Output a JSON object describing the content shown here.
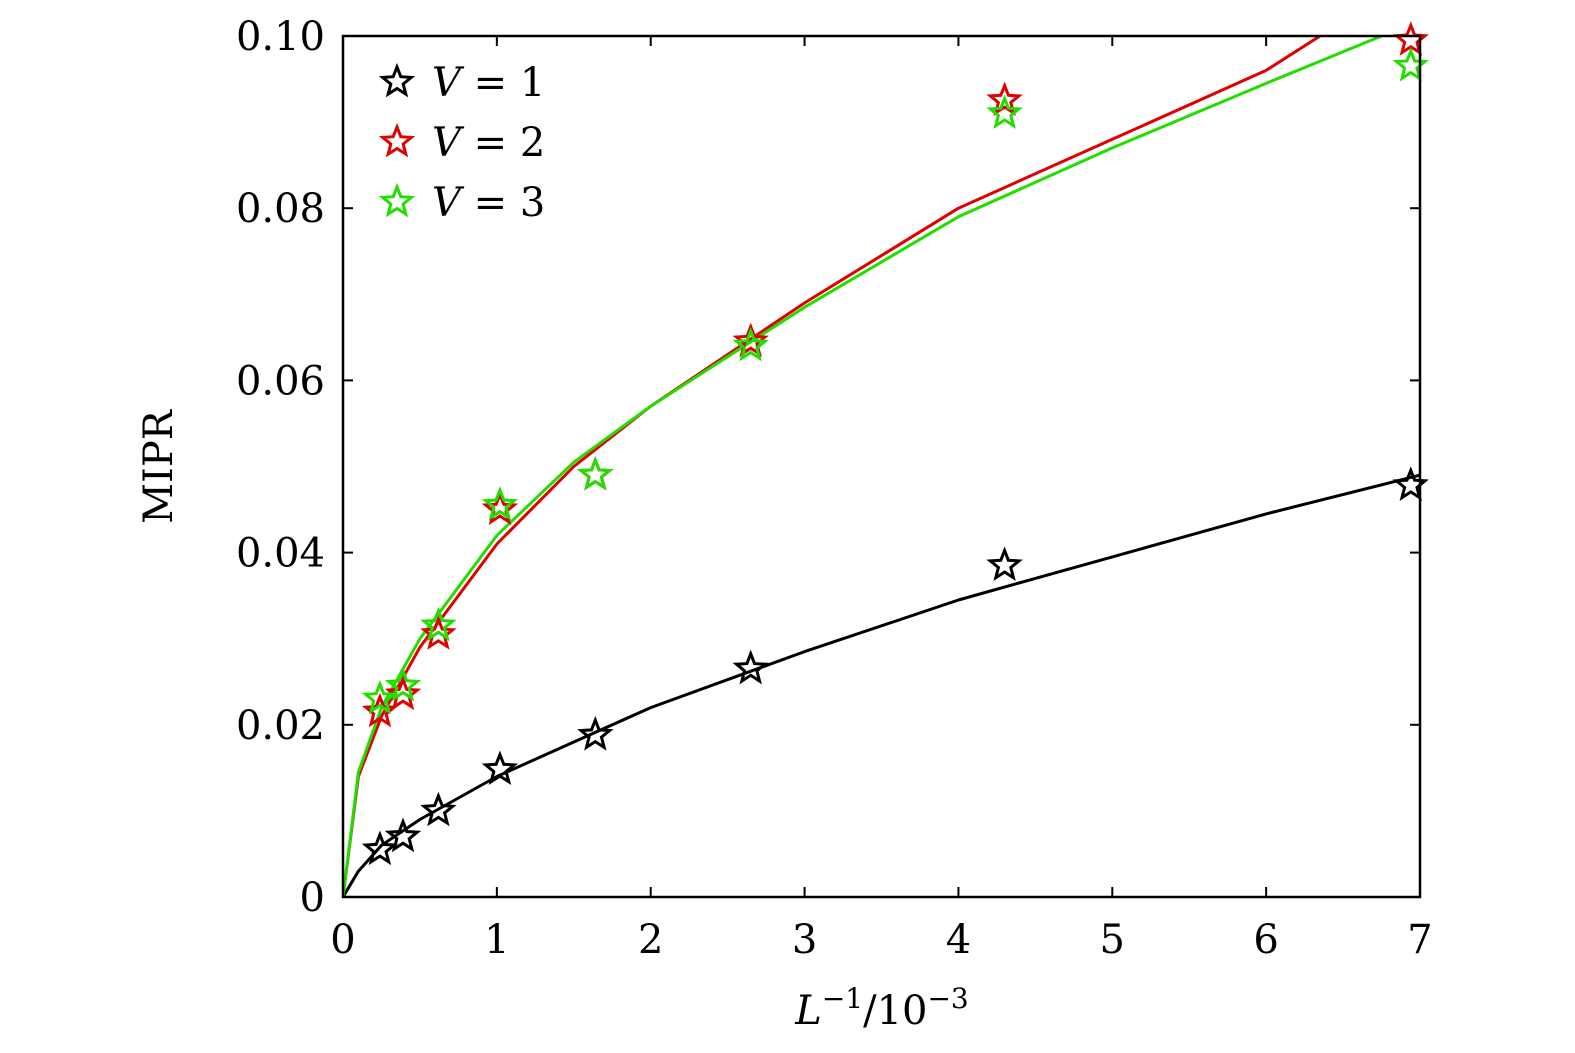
{
  "chart_data": {
    "type": "scatter",
    "xlabel": {
      "base": "L",
      "sup1": "−1",
      "mid": "/10",
      "sup2": "−3"
    },
    "ylabel": "MIPR",
    "xlim": [
      0,
      7
    ],
    "ylim": [
      0,
      0.1
    ],
    "xticks": [
      "0",
      "1",
      "2",
      "3",
      "4",
      "5",
      "6",
      "7"
    ],
    "yticks": [
      "0",
      "0.02",
      "0.04",
      "0.06",
      "0.08",
      "0.10"
    ],
    "legend_position": "top-left",
    "marker": "star",
    "series": [
      {
        "name": "V = 1",
        "legend_var": "V",
        "legend_val": "= 1",
        "color": "#000000",
        "points": [
          [
            0.24,
            0.0055
          ],
          [
            0.39,
            0.007
          ],
          [
            0.62,
            0.01
          ],
          [
            1.02,
            0.0148
          ],
          [
            1.64,
            0.0188
          ],
          [
            2.65,
            0.0265
          ],
          [
            4.3,
            0.0385
          ],
          [
            6.94,
            0.0478
          ]
        ],
        "fit": [
          [
            0.0,
            0.0
          ],
          [
            0.1,
            0.003
          ],
          [
            0.25,
            0.006
          ],
          [
            0.5,
            0.009
          ],
          [
            1.0,
            0.014
          ],
          [
            1.5,
            0.018
          ],
          [
            2.0,
            0.022
          ],
          [
            3.0,
            0.0285
          ],
          [
            4.0,
            0.0345
          ],
          [
            5.0,
            0.0395
          ],
          [
            6.0,
            0.0445
          ],
          [
            7.0,
            0.049
          ]
        ]
      },
      {
        "name": "V = 2",
        "legend_var": "V",
        "legend_val": "= 2",
        "color": "#e00000",
        "points": [
          [
            0.24,
            0.0215
          ],
          [
            0.39,
            0.0235
          ],
          [
            0.62,
            0.0305
          ],
          [
            1.02,
            0.045
          ],
          [
            1.64,
            0.049
          ],
          [
            2.65,
            0.0645
          ],
          [
            4.3,
            0.0925
          ],
          [
            6.94,
            0.0995
          ]
        ],
        "fit": [
          [
            0.0,
            0.0
          ],
          [
            0.1,
            0.014
          ],
          [
            0.25,
            0.021
          ],
          [
            0.5,
            0.029
          ],
          [
            1.0,
            0.041
          ],
          [
            1.5,
            0.05
          ],
          [
            2.0,
            0.057
          ],
          [
            3.0,
            0.069
          ],
          [
            4.0,
            0.08
          ],
          [
            5.0,
            0.088
          ],
          [
            6.0,
            0.096
          ],
          [
            6.35,
            0.1
          ]
        ]
      },
      {
        "name": "V = 3",
        "legend_var": "V",
        "legend_val": "= 3",
        "color": "#22dd00",
        "points": [
          [
            0.24,
            0.023
          ],
          [
            0.39,
            0.0245
          ],
          [
            0.62,
            0.0315
          ],
          [
            1.02,
            0.0455
          ],
          [
            1.64,
            0.049
          ],
          [
            2.65,
            0.064
          ],
          [
            4.3,
            0.091
          ],
          [
            6.94,
            0.0965
          ]
        ],
        "fit": [
          [
            0.0,
            0.0
          ],
          [
            0.1,
            0.0145
          ],
          [
            0.25,
            0.022
          ],
          [
            0.5,
            0.03
          ],
          [
            1.0,
            0.042
          ],
          [
            1.5,
            0.0505
          ],
          [
            2.0,
            0.057
          ],
          [
            3.0,
            0.0685
          ],
          [
            4.0,
            0.079
          ],
          [
            5.0,
            0.087
          ],
          [
            6.0,
            0.0945
          ],
          [
            6.75,
            0.1
          ]
        ]
      }
    ]
  }
}
